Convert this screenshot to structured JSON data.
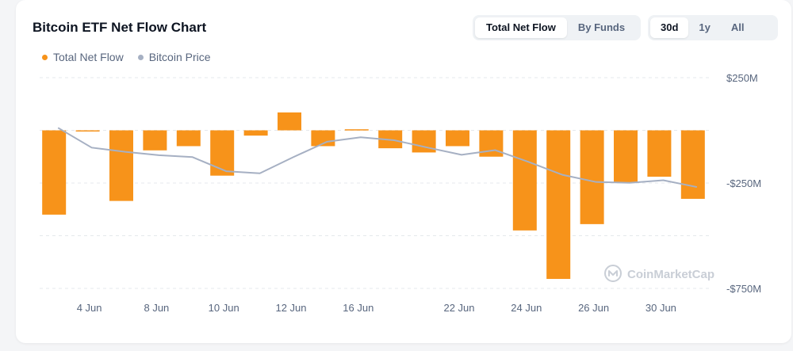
{
  "header": {
    "title": "Bitcoin ETF Net Flow Chart",
    "view_tabs": [
      {
        "label": "Total Net Flow",
        "active": true
      },
      {
        "label": "By Funds",
        "active": false
      }
    ],
    "range_tabs": [
      {
        "label": "30d",
        "active": true
      },
      {
        "label": "1y",
        "active": false
      },
      {
        "label": "All",
        "active": false
      }
    ]
  },
  "watermark": "CoinMarketCap",
  "colors": {
    "net_flow": "#f7931a",
    "price": "#a6b0c3",
    "grid": "#e5e8ec",
    "axis_text": "#58667e"
  },
  "chart_data": {
    "type": "bar",
    "title": "Bitcoin ETF Net Flow Chart",
    "legend": [
      "Total Net Flow",
      "Bitcoin Price"
    ],
    "legend_position": "top-left",
    "grid": true,
    "y_axis": {
      "ticks": [
        250,
        -250,
        -750
      ],
      "tick_labels": [
        "$250M",
        "-$250M",
        "-$750M"
      ],
      "range": [
        -750,
        250
      ],
      "position": "right"
    },
    "x_tick_labels": [
      "4 Jun",
      "8 Jun",
      "10 Jun",
      "12 Jun",
      "16 Jun",
      "22 Jun",
      "24 Jun",
      "26 Jun",
      "30 Jun"
    ],
    "series": [
      {
        "name": "Total Net Flow",
        "kind": "bar",
        "values": [
          -400,
          -5,
          -335,
          -95,
          -75,
          -215,
          -25,
          85,
          -75,
          5,
          -85,
          -105,
          -75,
          -125,
          -475,
          -705,
          -445,
          -250,
          -220,
          -325
        ]
      },
      {
        "name": "Bitcoin Price",
        "kind": "line",
        "values": [
          12,
          -82,
          -102,
          -118,
          -127,
          -194,
          -204,
          -127,
          -54,
          -33,
          -47,
          -82,
          -116,
          -94,
          -150,
          -211,
          -245,
          -249,
          -237,
          -269
        ]
      }
    ]
  }
}
